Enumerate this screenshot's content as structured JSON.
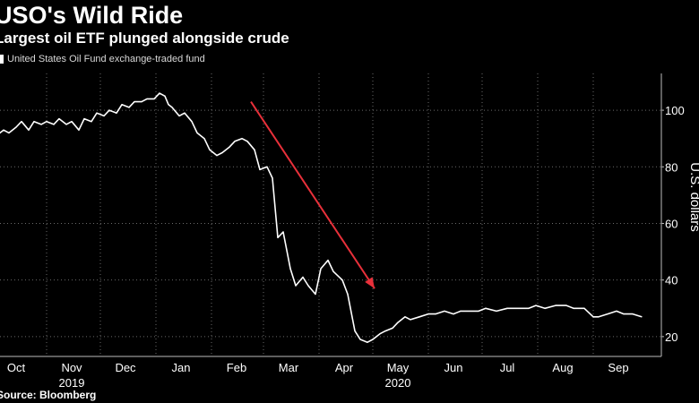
{
  "title": "USO's Wild Ride",
  "subtitle": "Largest oil ETF plunged alongside crude",
  "legend_label": "United States Oil Fund exchange-traded fund",
  "source": "Source: Bloomberg",
  "colors": {
    "background": "#000000",
    "line": "#ffffff",
    "arrow": "#e8303a",
    "grid": "#6a6a6a"
  },
  "chart_data": {
    "type": "line",
    "title": "USO's Wild Ride",
    "subtitle": "Largest oil ETF plunged alongside crude",
    "ylabel": "U.S. dollars",
    "ylim": [
      13,
      113
    ],
    "yticks": [
      20,
      40,
      60,
      80,
      100
    ],
    "grid": "dotted",
    "legend": "top-left",
    "x_month_labels": [
      "Oct",
      "Nov",
      "Dec",
      "Jan",
      "Feb",
      "Mar",
      "Apr",
      "May",
      "Jun",
      "Jul",
      "Aug",
      "Sep"
    ],
    "x_year_labels": [
      "2019",
      "2020"
    ],
    "series": [
      {
        "name": "United States Oil Fund exchange-traded fund",
        "x": [
          "2019-10-01",
          "2019-10-04",
          "2019-10-08",
          "2019-10-11",
          "2019-10-15",
          "2019-10-18",
          "2019-10-22",
          "2019-10-25",
          "2019-10-29",
          "2019-11-01",
          "2019-11-05",
          "2019-11-08",
          "2019-11-12",
          "2019-11-15",
          "2019-11-19",
          "2019-11-22",
          "2019-11-26",
          "2019-11-29",
          "2019-12-03",
          "2019-12-06",
          "2019-12-10",
          "2019-12-13",
          "2019-12-17",
          "2019-12-20",
          "2019-12-24",
          "2019-12-27",
          "2019-12-31",
          "2020-01-03",
          "2020-01-06",
          "2020-01-08",
          "2020-01-10",
          "2020-01-14",
          "2020-01-17",
          "2020-01-21",
          "2020-01-24",
          "2020-01-28",
          "2020-01-31",
          "2020-02-04",
          "2020-02-07",
          "2020-02-11",
          "2020-02-14",
          "2020-02-18",
          "2020-02-21",
          "2020-02-25",
          "2020-02-28",
          "2020-03-03",
          "2020-03-06",
          "2020-03-09",
          "2020-03-12",
          "2020-03-16",
          "2020-03-19",
          "2020-03-23",
          "2020-03-26",
          "2020-03-30",
          "2020-04-02",
          "2020-04-06",
          "2020-04-09",
          "2020-04-14",
          "2020-04-17",
          "2020-04-21",
          "2020-04-24",
          "2020-04-28",
          "2020-05-01",
          "2020-05-05",
          "2020-05-08",
          "2020-05-12",
          "2020-05-15",
          "2020-05-19",
          "2020-05-22",
          "2020-05-27",
          "2020-06-01",
          "2020-06-05",
          "2020-06-10",
          "2020-06-15",
          "2020-06-19",
          "2020-06-24",
          "2020-06-29",
          "2020-07-03",
          "2020-07-09",
          "2020-07-15",
          "2020-07-21",
          "2020-07-27",
          "2020-07-31",
          "2020-08-05",
          "2020-08-11",
          "2020-08-17",
          "2020-08-21",
          "2020-08-27",
          "2020-09-01",
          "2020-09-04",
          "2020-09-09",
          "2020-09-14",
          "2020-09-18",
          "2020-09-23",
          "2020-09-28"
        ],
        "values": [
          94,
          91,
          93,
          92,
          94,
          96,
          93,
          96,
          95,
          96,
          95,
          97,
          95,
          96,
          93,
          97,
          96,
          99,
          98,
          100,
          99,
          102,
          101,
          103,
          103,
          104,
          104,
          106,
          105,
          102,
          101,
          98,
          99,
          96,
          92,
          90,
          86,
          84,
          85,
          87,
          89,
          90,
          89,
          86,
          79,
          80,
          76,
          55,
          57,
          44,
          38,
          41,
          38,
          35,
          44,
          47,
          43,
          40,
          35,
          22,
          19,
          18,
          19,
          21,
          22,
          23,
          25,
          27,
          26,
          27,
          28,
          28,
          29,
          28,
          29,
          29,
          29,
          30,
          29,
          30,
          30,
          30,
          31,
          30,
          31,
          31,
          30,
          30,
          27,
          27,
          28,
          29,
          28,
          28,
          27
        ]
      }
    ],
    "annotations": [
      {
        "type": "arrow",
        "from": [
          "2020-02-23",
          103
        ],
        "to": [
          "2020-05-02",
          37
        ]
      }
    ]
  }
}
